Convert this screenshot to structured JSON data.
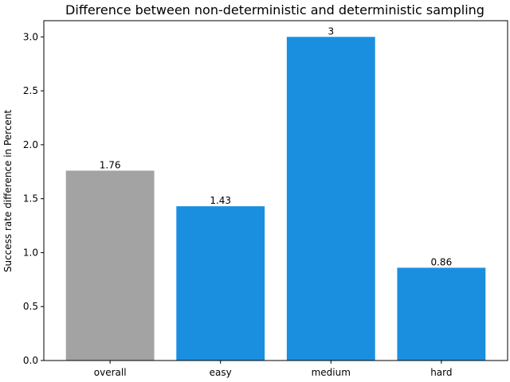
{
  "chart_data": {
    "type": "bar",
    "title": "Difference between non-deterministic and deterministic sampling",
    "xlabel": "",
    "ylabel": "Success rate difference in Percent",
    "categories": [
      "overall",
      "easy",
      "medium",
      "hard"
    ],
    "values": [
      1.76,
      1.43,
      3.0,
      0.86
    ],
    "data_labels": [
      "1.76",
      "1.43",
      "3",
      "0.86"
    ],
    "ylim": [
      0,
      3.15
    ],
    "yticks": [
      0.0,
      0.5,
      1.0,
      1.5,
      2.0,
      2.5,
      3.0
    ],
    "ytick_labels": [
      "0.0",
      "0.5",
      "1.0",
      "1.5",
      "2.0",
      "2.5",
      "3.0"
    ],
    "bar_colors": [
      "#a3a3a3",
      "#1a8fe0",
      "#1a8fe0",
      "#1a8fe0"
    ],
    "grid": false,
    "legend": "none"
  }
}
